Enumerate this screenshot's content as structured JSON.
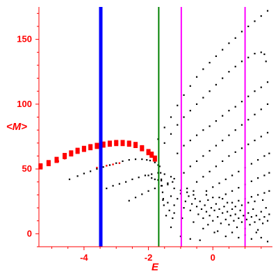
{
  "chart_data": {
    "type": "scatter",
    "xlabel": "E",
    "ylabel": "<M>",
    "xlim": [
      -5.4,
      1.85
    ],
    "ylim": [
      -10,
      175
    ],
    "xticks": [
      -4,
      -2,
      0
    ],
    "yticks": [
      0,
      50,
      100,
      150
    ],
    "grid": false,
    "colors": {
      "axes": "#ff0000",
      "points": "#000000",
      "highlight": "#ff0000",
      "line_blue": "#0000ff",
      "line_green": "#008000",
      "line_magenta": "#ff00ff"
    },
    "vertical_lines": [
      {
        "x": -3.48,
        "color": "#0000ff",
        "weight": "thick"
      },
      {
        "x": -1.68,
        "color": "#008000",
        "weight": "normal"
      },
      {
        "x": -0.98,
        "color": "#ff00ff",
        "weight": "normal"
      },
      {
        "x": 1.0,
        "color": "#ff00ff",
        "weight": "normal"
      }
    ],
    "series": [
      {
        "style": "red-band",
        "points": [
          [
            -5.35,
            52
          ],
          [
            -5.1,
            54.5
          ],
          [
            -4.85,
            57
          ],
          [
            -4.6,
            60
          ],
          [
            -4.4,
            62
          ],
          [
            -4.2,
            64
          ],
          [
            -4.0,
            65.5
          ],
          [
            -3.8,
            66.8
          ],
          [
            -3.6,
            67.8
          ],
          [
            -3.4,
            68.8
          ],
          [
            -3.2,
            69.5
          ],
          [
            -3.0,
            70
          ],
          [
            -2.8,
            70
          ],
          [
            -2.6,
            69.5
          ],
          [
            -2.4,
            68.5
          ],
          [
            -2.2,
            66
          ],
          [
            -2.0,
            63
          ],
          [
            -1.9,
            61
          ],
          [
            -1.8,
            58
          ]
        ]
      },
      {
        "style": "red-points",
        "points": [
          [
            -4.8,
            56
          ],
          [
            -4.6,
            58
          ],
          [
            -3.6,
            51
          ],
          [
            -3.5,
            51.5
          ],
          [
            -3.3,
            52.5
          ],
          [
            -3.1,
            53.5
          ],
          [
            -2.9,
            54.5
          ]
        ]
      },
      {
        "style": "dotted-curve",
        "points": [
          [
            -4.45,
            42
          ],
          [
            -4.2,
            44.5
          ],
          [
            -4.0,
            46.5
          ],
          [
            -3.8,
            48.2
          ],
          [
            -3.6,
            50
          ],
          [
            -3.4,
            51.5
          ],
          [
            -3.2,
            53
          ],
          [
            -3.0,
            54.5
          ],
          [
            -2.8,
            56
          ],
          [
            -2.6,
            57
          ],
          [
            -2.4,
            57.5
          ],
          [
            -2.2,
            57.5
          ],
          [
            -2.05,
            57
          ],
          [
            -1.95,
            56.5
          ],
          [
            -1.8,
            55
          ],
          [
            -1.7,
            53
          ]
        ]
      },
      {
        "style": "dotted-curve",
        "points": [
          [
            -3.5,
            33
          ],
          [
            -3.3,
            35
          ],
          [
            -3.1,
            37
          ],
          [
            -2.9,
            38.5
          ],
          [
            -2.7,
            40
          ],
          [
            -2.5,
            42
          ],
          [
            -2.3,
            43.5
          ],
          [
            -2.1,
            45
          ],
          [
            -1.9,
            46
          ],
          [
            -1.7,
            47
          ],
          [
            -1.5,
            46
          ],
          [
            -1.3,
            44
          ],
          [
            -1.2,
            42.5
          ]
        ]
      },
      {
        "style": "dotted-curve",
        "points": [
          [
            -2.6,
            25.5
          ],
          [
            -2.4,
            28
          ],
          [
            -2.2,
            30.5
          ],
          [
            -2.0,
            33
          ],
          [
            -1.8,
            35
          ],
          [
            -1.6,
            37
          ],
          [
            -1.4,
            39
          ],
          [
            -1.25,
            40
          ]
        ]
      },
      {
        "style": "dotted-curve",
        "points": [
          [
            -2.0,
            45
          ],
          [
            -1.9,
            43
          ],
          [
            -1.8,
            42
          ],
          [
            -1.7,
            41.5
          ],
          [
            -1.6,
            41
          ],
          [
            -1.4,
            38
          ],
          [
            -1.2,
            35
          ],
          [
            -1.0,
            33.5
          ],
          [
            -0.8,
            32
          ],
          [
            -0.6,
            30
          ]
        ]
      },
      {
        "style": "dotted-curve",
        "points": [
          [
            -1.7,
            73
          ],
          [
            -1.5,
            82
          ],
          [
            -1.3,
            90
          ],
          [
            -1.1,
            99
          ],
          [
            -0.9,
            107
          ],
          [
            -0.7,
            114
          ],
          [
            -0.5,
            121
          ],
          [
            -0.3,
            127
          ],
          [
            -0.1,
            132
          ],
          [
            0.1,
            137
          ],
          [
            0.3,
            142
          ],
          [
            0.5,
            147
          ],
          [
            0.7,
            151
          ],
          [
            0.9,
            156
          ],
          [
            1.1,
            160
          ],
          [
            1.3,
            164
          ],
          [
            1.5,
            168
          ],
          [
            1.7,
            172
          ]
        ]
      },
      {
        "style": "dotted-curve",
        "points": [
          [
            -1.5,
            70
          ],
          [
            -1.3,
            77
          ],
          [
            -1.1,
            84
          ],
          [
            -0.9,
            90
          ],
          [
            -0.7,
            95
          ],
          [
            -0.5,
            100
          ],
          [
            -0.3,
            105
          ],
          [
            -0.1,
            110
          ],
          [
            0.1,
            115
          ],
          [
            0.3,
            120
          ],
          [
            0.5,
            125
          ],
          [
            0.7,
            129
          ],
          [
            0.9,
            133
          ],
          [
            1.1,
            136
          ],
          [
            1.3,
            139
          ],
          [
            1.5,
            140
          ],
          [
            1.6,
            138.5
          ],
          [
            1.65,
            133
          ]
        ]
      },
      {
        "style": "dotted-curve",
        "points": [
          [
            -1.1,
            62
          ],
          [
            -0.9,
            68
          ],
          [
            -0.7,
            72
          ],
          [
            -0.5,
            76
          ],
          [
            -0.3,
            80
          ],
          [
            -0.1,
            83
          ],
          [
            0.1,
            87
          ],
          [
            0.3,
            91
          ],
          [
            0.5,
            95
          ],
          [
            0.7,
            98
          ],
          [
            0.9,
            102
          ],
          [
            1.1,
            106
          ],
          [
            1.3,
            110
          ],
          [
            1.5,
            113
          ],
          [
            1.7,
            117
          ]
        ]
      },
      {
        "style": "dotted-curve",
        "points": [
          [
            -0.9,
            47
          ],
          [
            -0.7,
            52
          ],
          [
            -0.5,
            56
          ],
          [
            -0.3,
            60
          ],
          [
            -0.1,
            64
          ],
          [
            0.1,
            68
          ],
          [
            0.3,
            72
          ],
          [
            0.5,
            76
          ],
          [
            0.7,
            80
          ],
          [
            0.9,
            84
          ],
          [
            1.1,
            88
          ],
          [
            1.3,
            92
          ],
          [
            1.5,
            96
          ],
          [
            1.7,
            100
          ]
        ]
      },
      {
        "style": "dotted-curve",
        "points": [
          [
            -0.5,
            40
          ],
          [
            -0.3,
            44
          ],
          [
            -0.1,
            48
          ],
          [
            0.1,
            52
          ],
          [
            0.3,
            56
          ],
          [
            0.5,
            60
          ],
          [
            0.7,
            63
          ],
          [
            0.9,
            66
          ],
          [
            1.1,
            69
          ],
          [
            1.3,
            72
          ],
          [
            1.5,
            75
          ],
          [
            1.7,
            78
          ]
        ]
      },
      {
        "style": "dotted-curve",
        "points": [
          [
            -0.2,
            33
          ],
          [
            0.0,
            36
          ],
          [
            0.2,
            39
          ],
          [
            0.4,
            42
          ],
          [
            0.6,
            45
          ],
          [
            0.8,
            48
          ],
          [
            1.0,
            51
          ],
          [
            1.2,
            54
          ],
          [
            1.4,
            57
          ],
          [
            1.6,
            60
          ],
          [
            1.75,
            62
          ]
        ]
      },
      {
        "style": "dotted-curve",
        "points": [
          [
            0.2,
            28
          ],
          [
            0.4,
            30.5
          ],
          [
            0.6,
            33
          ],
          [
            0.8,
            35.5
          ],
          [
            1.0,
            38
          ],
          [
            1.2,
            40.5
          ],
          [
            1.4,
            43
          ],
          [
            1.6,
            45
          ],
          [
            1.75,
            47
          ]
        ]
      },
      {
        "style": "dotted-curve",
        "points": [
          [
            0.6,
            24
          ],
          [
            0.8,
            25.5
          ],
          [
            1.0,
            27
          ],
          [
            1.2,
            28.5
          ],
          [
            1.4,
            30
          ],
          [
            1.6,
            31.5
          ],
          [
            1.75,
            33
          ]
        ]
      },
      {
        "style": "dotted-curve",
        "points": [
          [
            -1.65,
            52
          ],
          [
            -1.62,
            47
          ],
          [
            -1.6,
            42
          ],
          [
            -1.58,
            37
          ],
          [
            -1.56,
            32
          ],
          [
            -1.54,
            27
          ],
          [
            -1.52,
            22
          ]
        ]
      },
      {
        "style": "scatter-cloud",
        "points": [
          [
            -1.55,
            26
          ],
          [
            -1.4,
            24
          ],
          [
            -1.3,
            29
          ],
          [
            -1.2,
            22
          ],
          [
            -1.1,
            27
          ],
          [
            -1.0,
            31
          ],
          [
            -0.9,
            20
          ],
          [
            -0.85,
            25
          ],
          [
            -0.75,
            29
          ],
          [
            -0.7,
            18
          ],
          [
            -0.65,
            23
          ],
          [
            -0.55,
            27
          ],
          [
            -0.5,
            21
          ],
          [
            -0.45,
            15
          ],
          [
            -0.4,
            25
          ],
          [
            -0.35,
            19
          ],
          [
            -0.3,
            12
          ],
          [
            -0.25,
            22
          ],
          [
            -0.2,
            17
          ],
          [
            -0.15,
            26
          ],
          [
            -0.1,
            14
          ],
          [
            -0.05,
            20
          ],
          [
            0.0,
            10
          ],
          [
            0.05,
            18
          ],
          [
            0.1,
            23
          ],
          [
            0.15,
            13
          ],
          [
            0.2,
            19
          ],
          [
            0.25,
            8
          ],
          [
            0.3,
            16
          ],
          [
            0.35,
            21
          ],
          [
            0.4,
            11
          ],
          [
            0.45,
            17
          ],
          [
            0.5,
            7
          ],
          [
            0.55,
            14
          ],
          [
            0.6,
            19
          ],
          [
            0.65,
            10
          ],
          [
            0.7,
            15
          ],
          [
            0.75,
            5
          ],
          [
            0.8,
            12
          ],
          [
            0.85,
            18
          ],
          [
            0.9,
            9
          ],
          [
            0.95,
            14
          ],
          [
            1.0,
            4
          ],
          [
            1.05,
            11
          ],
          [
            1.1,
            16
          ],
          [
            1.15,
            7
          ],
          [
            1.2,
            13
          ],
          [
            1.25,
            19
          ],
          [
            1.3,
            9
          ],
          [
            1.35,
            14
          ],
          [
            1.4,
            3
          ],
          [
            1.45,
            11
          ],
          [
            1.5,
            17
          ],
          [
            1.55,
            8
          ],
          [
            1.6,
            13
          ],
          [
            1.65,
            20
          ],
          [
            1.7,
            10
          ],
          [
            1.75,
            15
          ],
          [
            -0.8,
            35
          ],
          [
            -0.6,
            33
          ],
          [
            -0.2,
            30
          ],
          [
            0.0,
            28
          ],
          [
            0.3,
            27
          ],
          [
            -1.2,
            16
          ],
          [
            -0.95,
            12
          ],
          [
            -0.6,
            9
          ],
          [
            -0.3,
            4
          ],
          [
            0.05,
            1
          ],
          [
            0.4,
            -2
          ],
          [
            0.8,
            -3
          ],
          [
            1.2,
            -4
          ],
          [
            1.5,
            -3
          ],
          [
            1.7,
            -6
          ],
          [
            -1.0,
            -2
          ],
          [
            -0.7,
            -4
          ],
          [
            -0.4,
            -5
          ],
          [
            -1.3,
            5
          ],
          [
            -1.45,
            14
          ],
          [
            -1.35,
            18
          ],
          [
            -1.25,
            12
          ],
          [
            -0.15,
            7
          ],
          [
            0.15,
            2
          ],
          [
            0.6,
            1
          ],
          [
            1.0,
            -1
          ],
          [
            1.35,
            1
          ],
          [
            0.9,
            22
          ],
          [
            1.1,
            24
          ],
          [
            1.3,
            25
          ],
          [
            1.55,
            26
          ],
          [
            0.7,
            21
          ],
          [
            0.45,
            24
          ]
        ]
      }
    ]
  }
}
